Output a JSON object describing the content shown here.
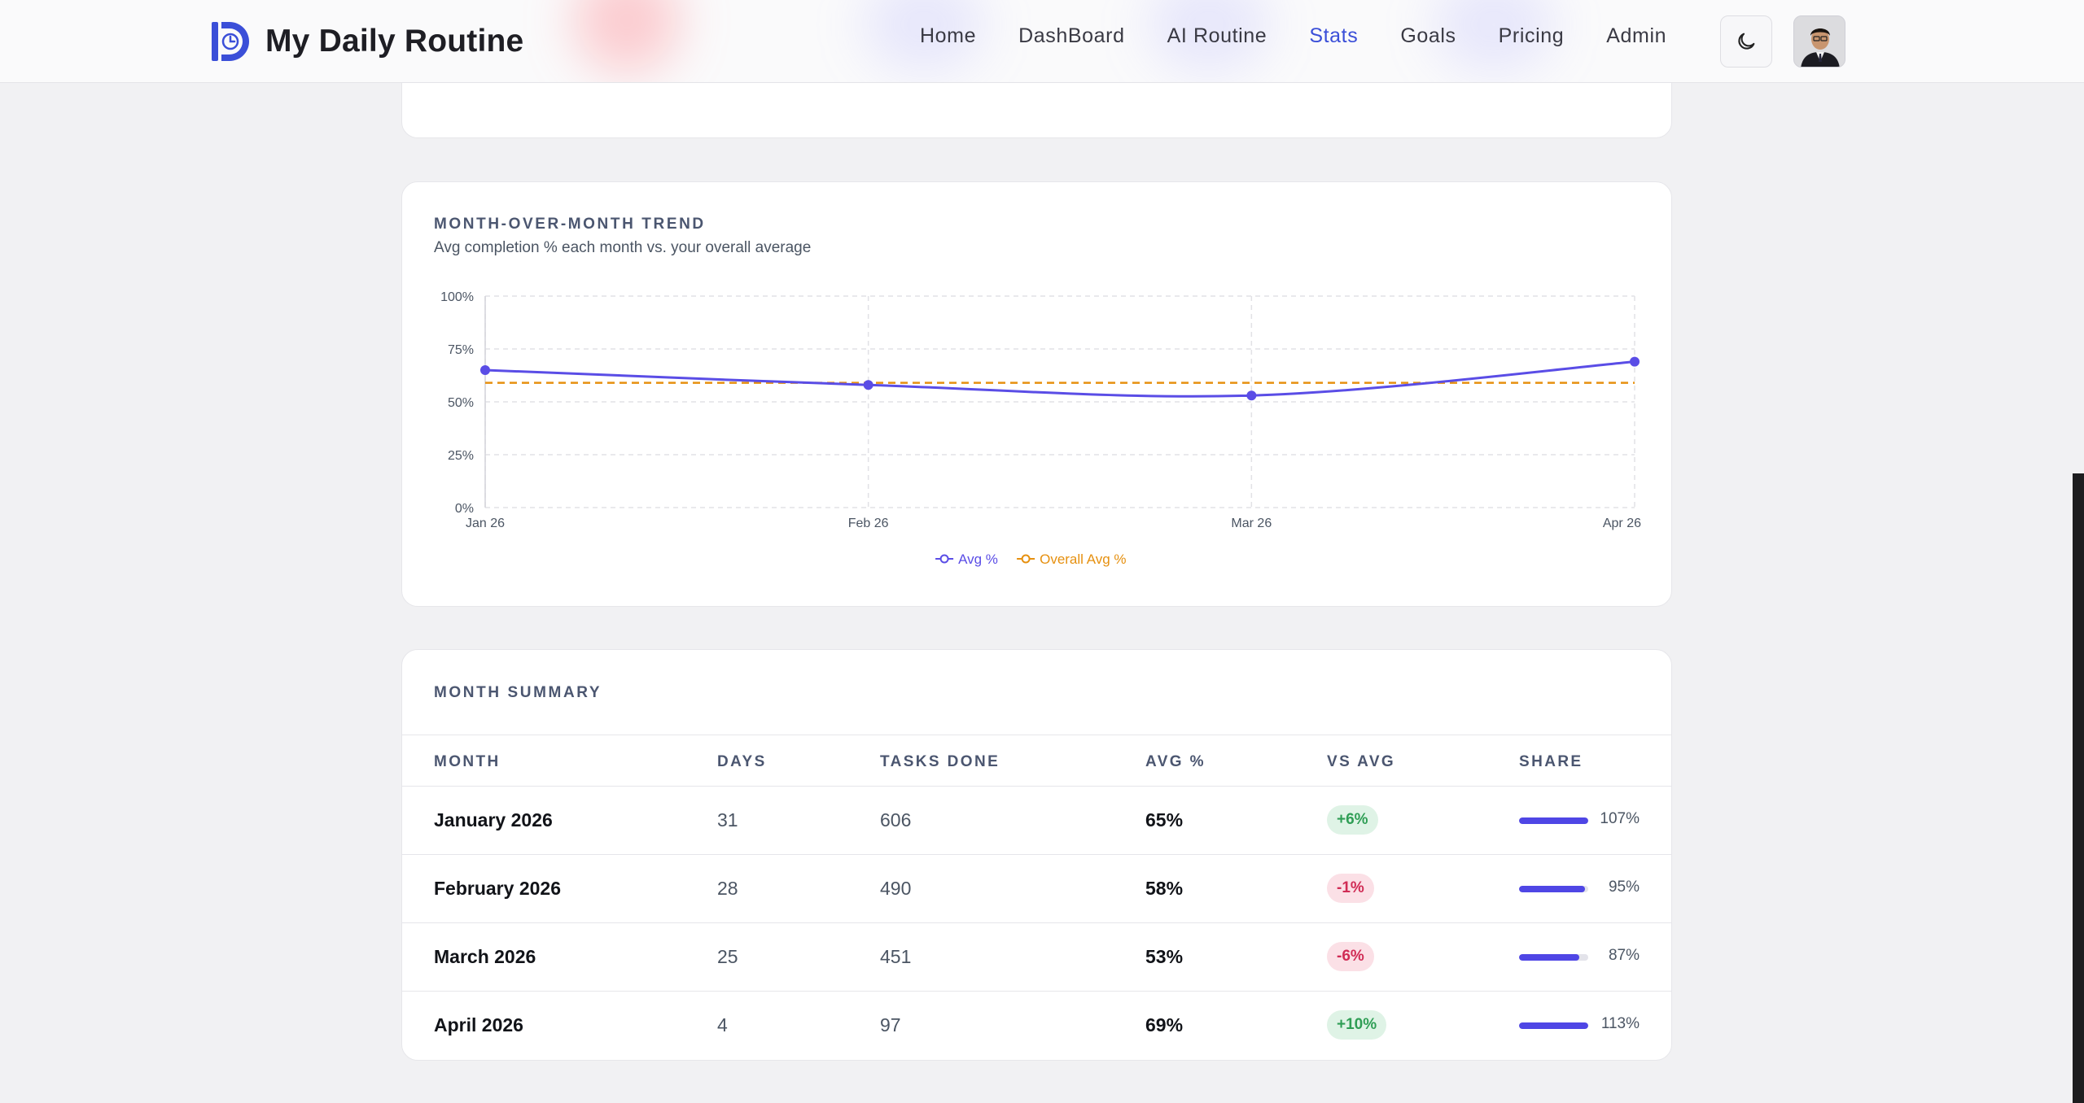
{
  "header": {
    "brand_title": "My Daily Routine",
    "nav": [
      {
        "label": "Home",
        "active": false
      },
      {
        "label": "DashBoard",
        "active": false
      },
      {
        "label": "AI Routine",
        "active": false
      },
      {
        "label": "Stats",
        "active": true
      },
      {
        "label": "Goals",
        "active": false
      },
      {
        "label": "Pricing",
        "active": false
      },
      {
        "label": "Admin",
        "active": false
      }
    ],
    "theme_icon": "moon-icon",
    "accent_color": "#3b4fd8"
  },
  "trend": {
    "title": "MONTH-OVER-MONTH TREND",
    "subtitle": "Avg completion % each month vs. your overall average"
  },
  "chart_data": {
    "type": "line",
    "title": "MONTH-OVER-MONTH TREND",
    "subtitle": "Avg completion % each month vs. your overall average",
    "categories": [
      "Jan 26",
      "Feb 26",
      "Mar 26",
      "Apr 26"
    ],
    "y_ticks": [
      "0%",
      "25%",
      "50%",
      "75%",
      "100%"
    ],
    "ylim": [
      0,
      100
    ],
    "grid": true,
    "legend_position": "bottom-center",
    "series": [
      {
        "name": "Avg %",
        "values": [
          65,
          58,
          53,
          69
        ],
        "color": "#5a4de6",
        "style": "solid"
      },
      {
        "name": "Overall Avg %",
        "values": [
          59,
          59,
          59,
          59
        ],
        "color": "#e6900f",
        "style": "dashed"
      }
    ]
  },
  "summary": {
    "title": "MONTH SUMMARY",
    "columns": [
      "MONTH",
      "DAYS",
      "TASKS DONE",
      "AVG %",
      "VS AVG",
      "SHARE"
    ],
    "rows": [
      {
        "month": "January 2026",
        "days": "31",
        "tasks": "606",
        "avg": "65%",
        "vs": "+6%",
        "vs_sign": "pos",
        "share": "107%",
        "share_value": 107
      },
      {
        "month": "February 2026",
        "days": "28",
        "tasks": "490",
        "avg": "58%",
        "vs": "-1%",
        "vs_sign": "neg",
        "share": "95%",
        "share_value": 95
      },
      {
        "month": "March 2026",
        "days": "25",
        "tasks": "451",
        "avg": "53%",
        "vs": "-6%",
        "vs_sign": "neg",
        "share": "87%",
        "share_value": 87
      },
      {
        "month": "April 2026",
        "days": "4",
        "tasks": "97",
        "avg": "69%",
        "vs": "+10%",
        "vs_sign": "pos",
        "share": "113%",
        "share_value": 113
      }
    ]
  }
}
